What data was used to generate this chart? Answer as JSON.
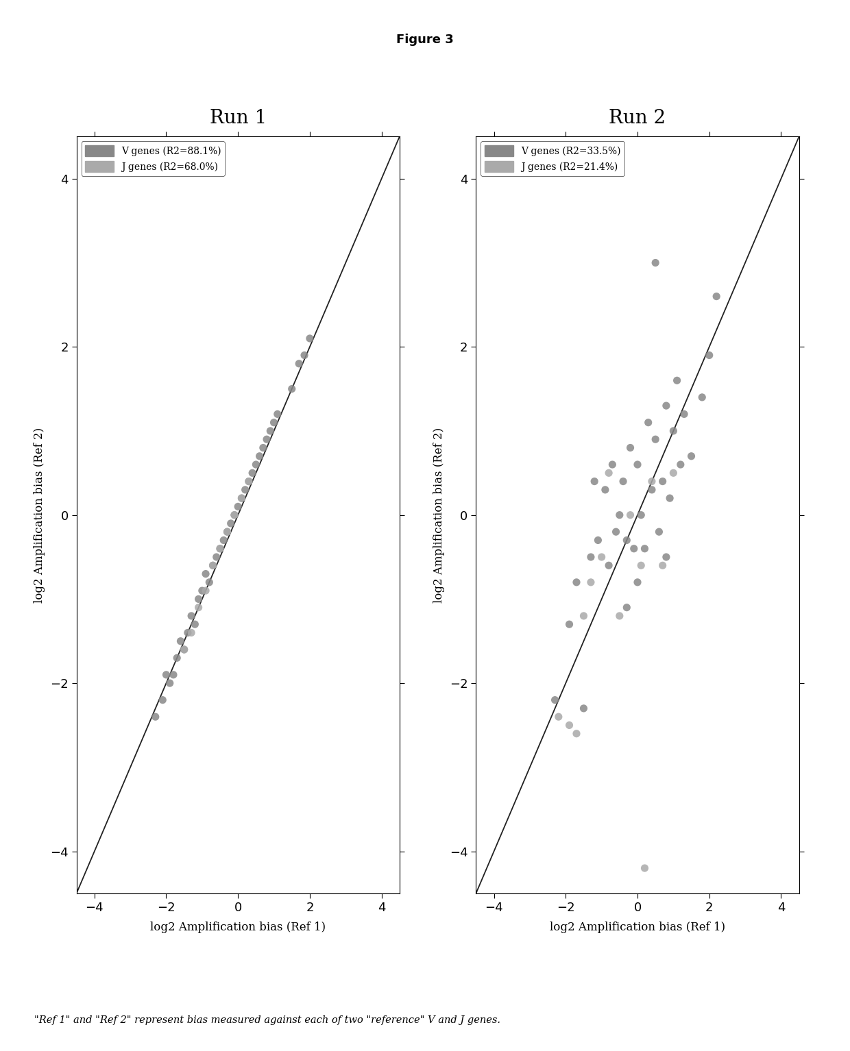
{
  "title": "Figure 3",
  "caption": "\"Ref 1\" and \"Ref 2\" represent bias measured against each of two \"reference\" V and J genes.",
  "run1_title": "Run 1",
  "run2_title": "Run 2",
  "xlabel": "log2 Amplification bias (Ref 1)",
  "ylabel": "log2 Amplification bias (Ref 2)",
  "xlim": [
    -4.5,
    4.5
  ],
  "ylim": [
    -4.5,
    4.5
  ],
  "xticks": [
    -4,
    -2,
    0,
    2,
    4
  ],
  "yticks": [
    -4,
    -2,
    0,
    2,
    4
  ],
  "run1_legend": [
    "V genes (R2=88.1%)",
    "J genes (R2=68.0%)"
  ],
  "run2_legend": [
    "V genes (R2=33.5%)",
    "J genes (R2=21.4%)"
  ],
  "dot_color_v": "#888888",
  "dot_color_j": "#aaaaaa",
  "line_color": "#222222",
  "bg_color": "#ffffff",
  "run1_v_x": [
    -2.3,
    -2.1,
    -2.0,
    -1.9,
    -1.8,
    -1.7,
    -1.6,
    -1.5,
    -1.4,
    -1.3,
    -1.2,
    -1.1,
    -1.0,
    -0.9,
    -0.8,
    -0.7,
    -0.6,
    -0.5,
    -0.4,
    -0.3,
    -0.2,
    -0.1,
    0.0,
    0.1,
    0.2,
    0.3,
    0.4,
    0.5,
    0.6,
    0.7,
    0.8,
    0.9,
    1.0,
    1.1,
    1.5,
    1.7,
    1.85,
    2.0
  ],
  "run1_v_y": [
    -2.4,
    -2.2,
    -1.9,
    -2.0,
    -1.9,
    -1.7,
    -1.5,
    -1.6,
    -1.4,
    -1.2,
    -1.3,
    -1.0,
    -0.9,
    -0.7,
    -0.8,
    -0.6,
    -0.5,
    -0.4,
    -0.3,
    -0.2,
    -0.1,
    0.0,
    0.1,
    0.2,
    0.3,
    0.4,
    0.5,
    0.6,
    0.7,
    0.8,
    0.9,
    1.0,
    1.1,
    1.2,
    1.5,
    1.8,
    1.9,
    2.1
  ],
  "run1_j_x": [
    -1.5,
    -1.3,
    -1.1,
    -0.9,
    -0.7,
    -0.5,
    -0.3,
    -0.1,
    0.1,
    0.3
  ],
  "run1_j_y": [
    -1.6,
    -1.4,
    -1.1,
    -0.9,
    -0.6,
    -0.4,
    -0.2,
    0.0,
    0.2,
    0.4
  ],
  "run2_v_x": [
    -2.3,
    -1.9,
    -1.7,
    -1.5,
    -1.3,
    -1.1,
    -0.9,
    -0.8,
    -0.7,
    -0.6,
    -0.5,
    -0.4,
    -0.3,
    -0.2,
    -0.1,
    0.0,
    0.1,
    0.2,
    0.3,
    0.4,
    0.5,
    0.6,
    0.7,
    0.8,
    0.9,
    1.0,
    1.1,
    1.2,
    1.3,
    1.5,
    1.8,
    2.0,
    2.2,
    0.5,
    -1.2,
    0.0,
    -0.3,
    0.8
  ],
  "run2_v_y": [
    -2.2,
    -1.3,
    -0.8,
    -2.3,
    -0.5,
    -0.3,
    0.3,
    -0.6,
    0.6,
    -0.2,
    0.0,
    0.4,
    -0.3,
    0.8,
    -0.4,
    0.6,
    0.0,
    -0.4,
    1.1,
    0.3,
    0.9,
    -0.2,
    0.4,
    1.3,
    0.2,
    1.0,
    1.6,
    0.6,
    1.2,
    0.7,
    1.4,
    1.9,
    2.6,
    3.0,
    0.4,
    -0.8,
    -1.1,
    -0.5
  ],
  "run2_j_x": [
    -2.2,
    -1.9,
    -1.7,
    -1.5,
    -1.3,
    -1.0,
    -0.8,
    -0.5,
    -0.2,
    0.1,
    0.4,
    0.7,
    1.0,
    0.2
  ],
  "run2_j_y": [
    -2.4,
    -2.5,
    -2.6,
    -1.2,
    -0.8,
    -0.5,
    0.5,
    -1.2,
    0.0,
    -0.6,
    0.4,
    -0.6,
    0.5,
    -4.2
  ]
}
